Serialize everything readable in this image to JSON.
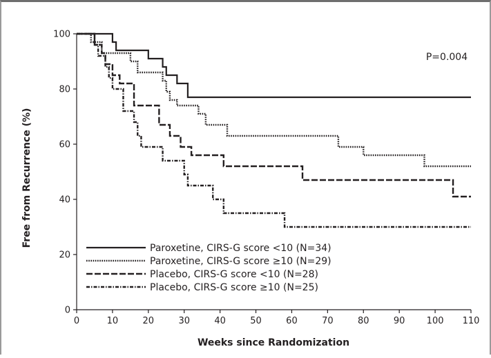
{
  "chart_data": {
    "type": "line",
    "step": true,
    "xlabel": "Weeks since Randomization",
    "ylabel": "Free from Recurrence (%)",
    "xlim": [
      0,
      110
    ],
    "ylim": [
      0,
      100
    ],
    "x_ticks": [
      0,
      10,
      20,
      30,
      40,
      50,
      60,
      70,
      80,
      90,
      100,
      110
    ],
    "y_ticks": [
      0,
      20,
      40,
      60,
      80,
      100
    ],
    "grid": false,
    "legend_position": "bottom-left",
    "annotation": "P=0.004",
    "series": [
      {
        "name": "Paroxetine, CIRS-G score <10 (N=34)",
        "style": "solid",
        "steps": [
          [
            0,
            100
          ],
          [
            10,
            97
          ],
          [
            11,
            94
          ],
          [
            20,
            91
          ],
          [
            24,
            88
          ],
          [
            25,
            85
          ],
          [
            28,
            82
          ],
          [
            31,
            77
          ],
          [
            110,
            77
          ]
        ]
      },
      {
        "name": "Paroxetine, CIRS-G score ≥10 (N=29)",
        "style": "dotted",
        "steps": [
          [
            0,
            100
          ],
          [
            4,
            97
          ],
          [
            7,
            93
          ],
          [
            15,
            90
          ],
          [
            17,
            86
          ],
          [
            24,
            83
          ],
          [
            25,
            79
          ],
          [
            26,
            76
          ],
          [
            28,
            74
          ],
          [
            34,
            71
          ],
          [
            36,
            67
          ],
          [
            42,
            63
          ],
          [
            73,
            59
          ],
          [
            80,
            56
          ],
          [
            97,
            52
          ],
          [
            110,
            52
          ]
        ]
      },
      {
        "name": "Placebo, CIRS-G score <10 (N=28)",
        "style": "dashed",
        "steps": [
          [
            0,
            100
          ],
          [
            5,
            96
          ],
          [
            7,
            93
          ],
          [
            8,
            89
          ],
          [
            10,
            85
          ],
          [
            12,
            82
          ],
          [
            16,
            74
          ],
          [
            23,
            67
          ],
          [
            26,
            63
          ],
          [
            29,
            59
          ],
          [
            32,
            56
          ],
          [
            41,
            52
          ],
          [
            63,
            47
          ],
          [
            105,
            41
          ],
          [
            110,
            41
          ]
        ]
      },
      {
        "name": "Placebo, CIRS-G score ≥10 (N=25)",
        "style": "dash-dot",
        "steps": [
          [
            0,
            100
          ],
          [
            5,
            96
          ],
          [
            6,
            92
          ],
          [
            8,
            88
          ],
          [
            9,
            84
          ],
          [
            10,
            80
          ],
          [
            13,
            72
          ],
          [
            16,
            68
          ],
          [
            17,
            63
          ],
          [
            18,
            59
          ],
          [
            24,
            54
          ],
          [
            30,
            49
          ],
          [
            31,
            45
          ],
          [
            38,
            40
          ],
          [
            41,
            35
          ],
          [
            58,
            30
          ],
          [
            110,
            30
          ]
        ]
      }
    ]
  }
}
